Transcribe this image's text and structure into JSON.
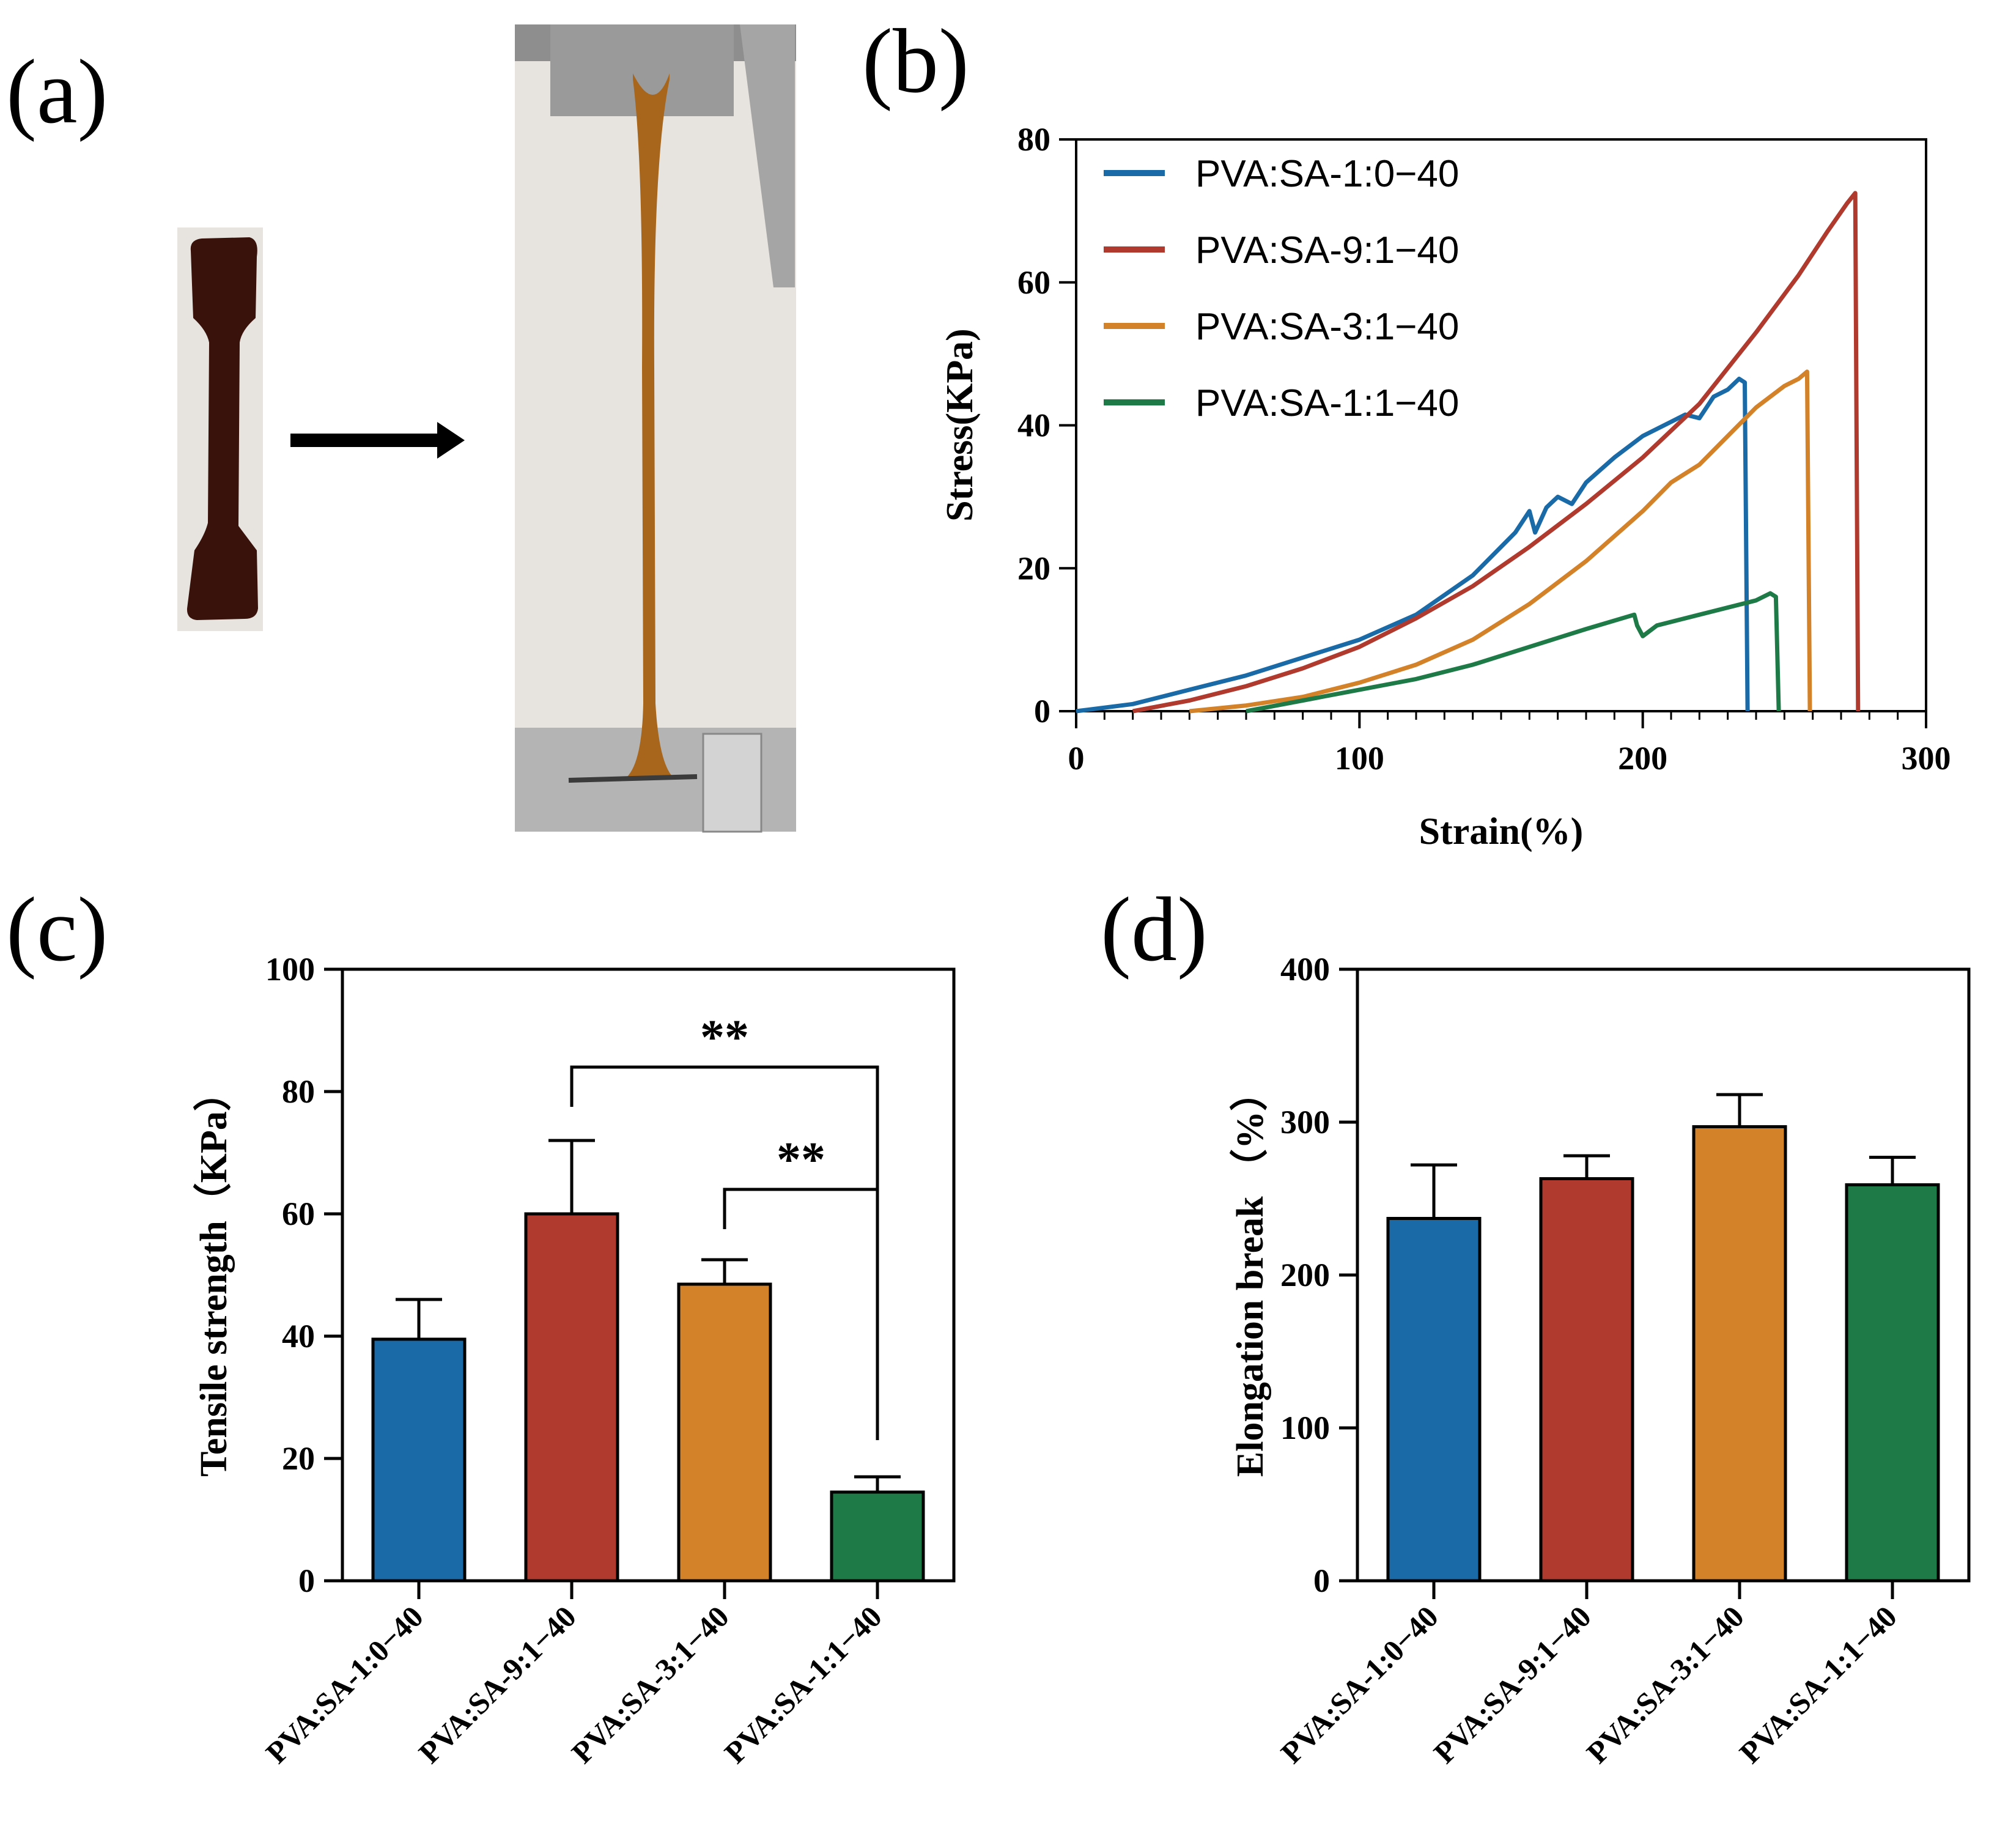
{
  "panels": {
    "a": {
      "label": "(a)",
      "photo_colors": {
        "specimen": "#3a120c",
        "stretched": "#a8661c",
        "frame": "#c9c9c9",
        "background": "#e7e4df"
      }
    },
    "b": {
      "label": "(b)"
    },
    "c": {
      "label": "(c)"
    },
    "d": {
      "label": "(d)"
    }
  },
  "chart_data": [
    {
      "id": "b",
      "type": "line",
      "title": "",
      "xlabel": "Strain(%)",
      "ylabel": "Stress(KPa)",
      "xlim": [
        0,
        300
      ],
      "ylim": [
        0,
        80
      ],
      "xticks": [
        0,
        100,
        200,
        300
      ],
      "yticks": [
        0,
        20,
        40,
        60,
        80
      ],
      "legend_position": "top-left",
      "series": [
        {
          "name": "PVA:SA-1:0−40",
          "color": "#1a6aa8",
          "points": [
            [
              0,
              0
            ],
            [
              20,
              1
            ],
            [
              40,
              3
            ],
            [
              60,
              5
            ],
            [
              80,
              7.5
            ],
            [
              100,
              10
            ],
            [
              120,
              13.5
            ],
            [
              140,
              19
            ],
            [
              155,
              25
            ],
            [
              160,
              28
            ],
            [
              162,
              25
            ],
            [
              166,
              28.5
            ],
            [
              170,
              30
            ],
            [
              175,
              29
            ],
            [
              180,
              32
            ],
            [
              190,
              35.5
            ],
            [
              200,
              38.5
            ],
            [
              210,
              40.5
            ],
            [
              215,
              41.5
            ],
            [
              220,
              41
            ],
            [
              225,
              44
            ],
            [
              230,
              45
            ],
            [
              234,
              46.5
            ],
            [
              236,
              46
            ],
            [
              237,
              0
            ]
          ]
        },
        {
          "name": "PVA:SA-9:1−40",
          "color": "#b03a2e",
          "points": [
            [
              20,
              0
            ],
            [
              40,
              1.5
            ],
            [
              60,
              3.5
            ],
            [
              80,
              6
            ],
            [
              100,
              9
            ],
            [
              120,
              13
            ],
            [
              140,
              17.5
            ],
            [
              160,
              23
            ],
            [
              180,
              29
            ],
            [
              200,
              35.5
            ],
            [
              220,
              43
            ],
            [
              240,
              53
            ],
            [
              255,
              61
            ],
            [
              265,
              67
            ],
            [
              272,
              71
            ],
            [
              275,
              72.5
            ],
            [
              276,
              0
            ]
          ]
        },
        {
          "name": "PVA:SA-3:1−40",
          "color": "#d4822a",
          "points": [
            [
              40,
              0
            ],
            [
              60,
              0.8
            ],
            [
              80,
              2
            ],
            [
              100,
              4
            ],
            [
              120,
              6.5
            ],
            [
              140,
              10
            ],
            [
              160,
              15
            ],
            [
              180,
              21
            ],
            [
              200,
              28
            ],
            [
              210,
              32
            ],
            [
              220,
              34.5
            ],
            [
              230,
              38.5
            ],
            [
              240,
              42.5
            ],
            [
              250,
              45.5
            ],
            [
              255,
              46.5
            ],
            [
              258,
              47.5
            ],
            [
              259,
              0
            ]
          ]
        },
        {
          "name": "PVA:SA-1:1−40",
          "color": "#1e7b48",
          "points": [
            [
              60,
              0
            ],
            [
              80,
              1.5
            ],
            [
              100,
              3
            ],
            [
              120,
              4.5
            ],
            [
              140,
              6.5
            ],
            [
              160,
              9
            ],
            [
              180,
              11.5
            ],
            [
              197,
              13.5
            ],
            [
              198,
              12
            ],
            [
              200,
              10.5
            ],
            [
              205,
              12
            ],
            [
              220,
              13.5
            ],
            [
              240,
              15.5
            ],
            [
              245,
              16.5
            ],
            [
              247,
              16
            ],
            [
              248,
              0
            ]
          ]
        }
      ]
    },
    {
      "id": "c",
      "type": "bar",
      "xlabel": "",
      "ylabel": "Tensile strength（KPa）",
      "ylim": [
        0,
        100
      ],
      "yticks": [
        0,
        20,
        40,
        60,
        80,
        100
      ],
      "categories": [
        "PVA:SA-1:0−40",
        "PVA:SA-9:1−40",
        "PVA:SA-3:1−40",
        "PVA:SA-1:1−40"
      ],
      "values": [
        39.5,
        60,
        48.5,
        14.5
      ],
      "errors": [
        6.5,
        12,
        4,
        2.5
      ],
      "colors": [
        "#1a6aa8",
        "#b03a2e",
        "#d4822a",
        "#1e7b48"
      ],
      "significance": [
        {
          "from": 1,
          "to": 3,
          "label": "**",
          "level": 84
        },
        {
          "from": 2,
          "to": 3,
          "label": "**",
          "level": 64
        }
      ]
    },
    {
      "id": "d",
      "type": "bar",
      "xlabel": "",
      "ylabel": "Elongation break （%）",
      "ylim": [
        0,
        400
      ],
      "yticks": [
        0,
        100,
        200,
        300,
        400
      ],
      "categories": [
        "PVA:SA-1:0−40",
        "PVA:SA-9:1−40",
        "PVA:SA-3:1−40",
        "PVA:SA-1:1−40"
      ],
      "values": [
        237,
        263,
        297,
        259
      ],
      "errors": [
        35,
        15,
        21,
        18
      ],
      "colors": [
        "#1a6aa8",
        "#b03a2e",
        "#d4822a",
        "#1e7b48"
      ]
    }
  ]
}
